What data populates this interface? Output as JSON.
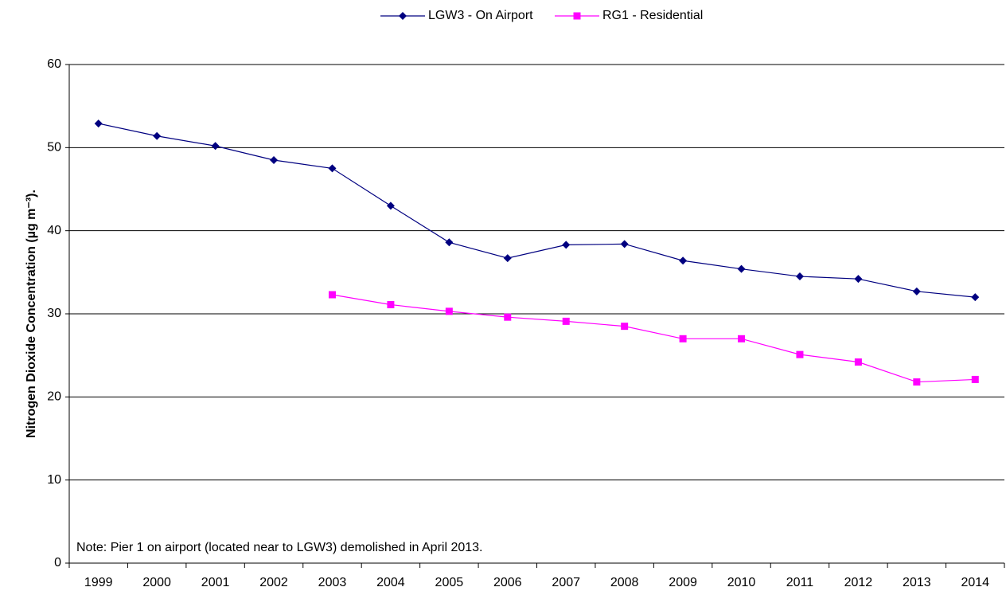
{
  "chart_data": {
    "type": "line",
    "y_label": "Nitrogen Dioxide Concentration (µg m⁻³).",
    "annotation": "Note: Pier 1 on airport (located near to LGW3) demolished in April 2013.",
    "categories": [
      "1999",
      "2000",
      "2001",
      "2002",
      "2003",
      "2004",
      "2005",
      "2006",
      "2007",
      "2008",
      "2009",
      "2010",
      "2011",
      "2012",
      "2013",
      "2014"
    ],
    "series": [
      {
        "name": "LGW3 - On Airport",
        "color": "#000080",
        "marker": "diamond",
        "values": [
          52.9,
          51.4,
          50.2,
          48.5,
          47.5,
          43.0,
          38.6,
          36.7,
          38.3,
          38.4,
          36.4,
          35.4,
          34.5,
          34.2,
          32.7,
          32.0
        ]
      },
      {
        "name": "RG1 - Residential",
        "color": "#ff00ff",
        "marker": "square",
        "values": [
          null,
          null,
          null,
          null,
          32.3,
          31.1,
          30.3,
          29.6,
          29.1,
          28.5,
          27.0,
          27.0,
          25.1,
          24.2,
          21.8,
          22.1
        ]
      }
    ],
    "ylim": [
      0,
      60
    ],
    "yticks": [
      0,
      10,
      20,
      30,
      40,
      50,
      60
    ],
    "grid": true,
    "legend": "top"
  }
}
